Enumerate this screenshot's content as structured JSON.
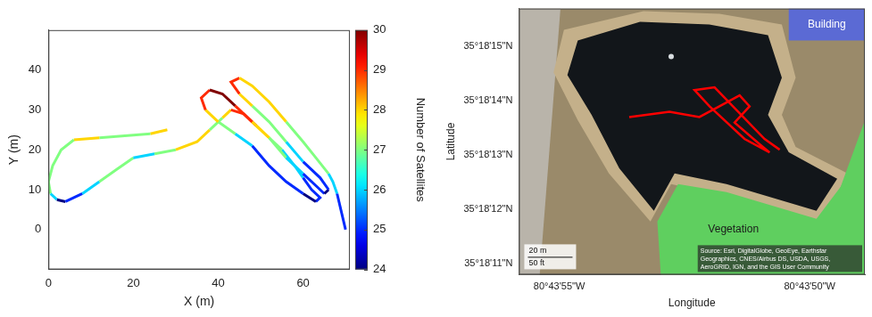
{
  "chart_data": [
    {
      "type": "line",
      "xlabel": "X (m)",
      "ylabel": "Y (m)",
      "x": [
        28,
        24,
        18,
        12,
        6,
        3,
        1,
        0,
        0.5,
        2,
        4,
        8,
        12,
        16,
        20,
        25,
        30,
        35,
        38,
        41,
        43,
        46,
        49,
        52,
        55,
        58,
        60,
        62,
        64,
        63,
        60,
        56,
        52,
        48,
        44,
        40,
        37,
        36,
        38,
        41,
        44,
        48,
        52,
        56,
        60,
        63,
        65,
        66,
        64,
        60,
        56,
        52,
        48,
        45,
        43,
        45,
        48,
        52,
        56,
        60,
        63,
        66,
        67,
        68,
        70
      ],
      "y": [
        25,
        24,
        23.5,
        23,
        22.5,
        20,
        16,
        12,
        9,
        7.5,
        7,
        9,
        12,
        15,
        18,
        19,
        20,
        22,
        25,
        28,
        30,
        29,
        26,
        23,
        20,
        16,
        13,
        10,
        8,
        7,
        9,
        12,
        16,
        21,
        24,
        27,
        30,
        33,
        35,
        34,
        31,
        27,
        23,
        18,
        14,
        11,
        9,
        10,
        13,
        17,
        22,
        27,
        31,
        34,
        37,
        38,
        36,
        32,
        27,
        22,
        18,
        14,
        12,
        9,
        0
      ],
      "satellites": [
        28,
        27,
        27,
        28,
        27,
        27,
        27,
        27,
        26,
        24,
        25,
        26,
        27,
        27,
        26,
        27,
        28,
        28,
        27,
        28,
        29,
        29,
        28,
        27,
        26,
        26,
        25,
        25,
        25,
        24,
        25,
        25,
        25,
        26,
        27,
        28,
        29,
        29,
        30,
        30,
        29,
        28,
        27,
        26,
        25,
        25,
        24,
        25,
        25,
        26,
        27,
        27,
        28,
        29,
        29,
        28,
        28,
        28,
        27,
        27,
        27,
        26,
        26,
        25,
        25
      ],
      "xlim": [
        0,
        71
      ],
      "xticks": [
        0,
        20,
        40,
        60
      ],
      "ylim": [
        -10,
        50
      ],
      "yticks": [
        0,
        10,
        20,
        30,
        40
      ],
      "colorbar": {
        "label": "Number of Satellites",
        "lim": [
          24,
          30
        ],
        "ticks": [
          24,
          25,
          26,
          27,
          28,
          29,
          30
        ]
      },
      "grid": false,
      "marker": "none",
      "line_style": "solid"
    },
    {
      "type": "map",
      "xlabel": "Longitude",
      "ylabel": "Latitude",
      "x": [
        -80.731556,
        -80.731333,
        -80.731167,
        -80.731056,
        -80.730944,
        -80.730889,
        -80.730972,
        -80.730833,
        -80.730778,
        -80.730917,
        -80.731111,
        -80.731194,
        -80.731083,
        -80.730806,
        -80.730722
      ],
      "y": [
        35.303806,
        35.303833,
        35.303806,
        35.303861,
        35.303917,
        35.303861,
        35.303778,
        35.303667,
        35.303625,
        35.303694,
        35.303861,
        35.303944,
        35.303958,
        35.303694,
        35.303639
      ],
      "color": "#ff0000",
      "xlim": [
        -80.732167,
        -80.73025
      ],
      "xticks": [
        {
          "value": -80.731944,
          "label": "80°43'55\"W"
        },
        {
          "value": -80.730556,
          "label": "80°43'50\"W"
        }
      ],
      "ylim": [
        35.303,
        35.304361
      ],
      "yticks": [
        {
          "value": 35.303056,
          "label": "35°18'11\"N"
        },
        {
          "value": 35.303333,
          "label": "35°18'12\"N"
        },
        {
          "value": 35.303611,
          "label": "35°18'13\"N"
        },
        {
          "value": 35.303889,
          "label": "35°18'14\"N"
        },
        {
          "value": 35.304167,
          "label": "35°18'15\"N"
        }
      ],
      "annotations": [
        "Building",
        "Vegetation",
        "20 m",
        "50 ft",
        "Source: Esri, DigitalGlobe, GeoEye, Earthstar Geographics, CNES/Airbus DS, USDA, USGS, AeroGRID, IGN, and the GIS User Community"
      ],
      "line_style": "solid",
      "marker": "none"
    }
  ]
}
